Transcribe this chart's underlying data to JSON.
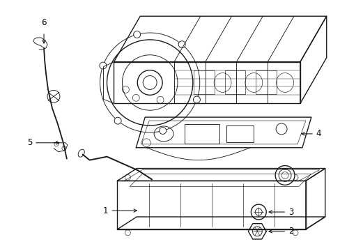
{
  "bg_color": "#ffffff",
  "line_color": "#1a1a1a",
  "lw_main": 1.0,
  "lw_detail": 0.65,
  "lw_thin": 0.45,
  "figsize": [
    4.89,
    3.6
  ],
  "dpi": 100
}
